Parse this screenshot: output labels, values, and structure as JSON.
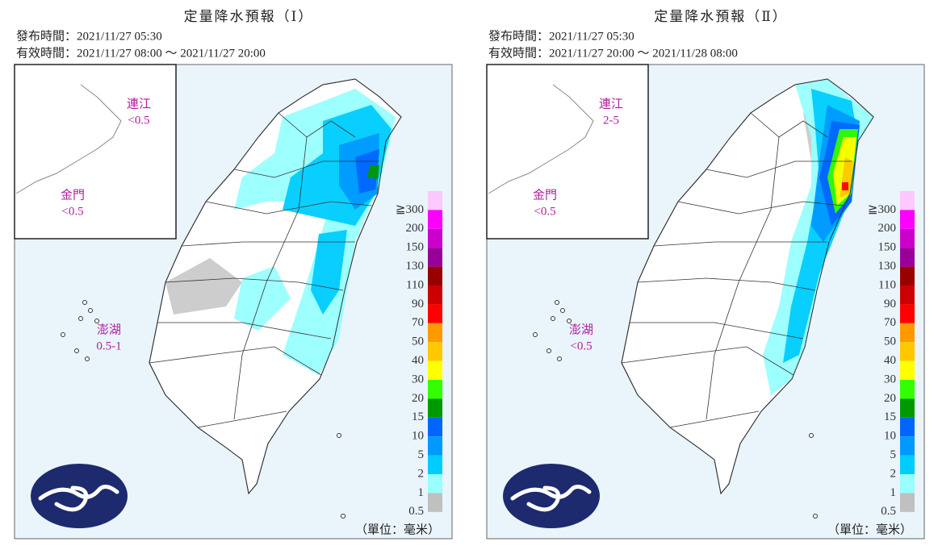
{
  "panels": [
    {
      "title": "定量降水預報（Ⅰ）",
      "issued": "發布時間：2021/11/27 05:30",
      "valid": "有效時間：2021/11/27 08:00 ～ 2021/11/27 20:00",
      "regions": [
        {
          "name": "連江",
          "value": "<0.5"
        },
        {
          "name": "金門",
          "value": "<0.5"
        },
        {
          "name": "澎湖",
          "value": "0.5-1"
        }
      ],
      "unit": "（單位：毫米）"
    },
    {
      "title": "定量降水預報（Ⅱ）",
      "issued": "發布時間：2021/11/27 05:30",
      "valid": "有效時間：2021/11/27 20:00 ～ 2021/11/28 08:00",
      "regions": [
        {
          "name": "連江",
          "value": "2-5"
        },
        {
          "name": "金門",
          "value": "<0.5"
        },
        {
          "name": "澎湖",
          "value": "<0.5"
        }
      ],
      "unit": "（單位：毫米）"
    }
  ],
  "legend": [
    {
      "label": "≧300",
      "color": "#fdc8fd"
    },
    {
      "label": "200",
      "color": "#fd00fd"
    },
    {
      "label": "150",
      "color": "#cc00cc"
    },
    {
      "label": "130",
      "color": "#990099"
    },
    {
      "label": "110",
      "color": "#990000"
    },
    {
      "label": "90",
      "color": "#cc0000"
    },
    {
      "label": "70",
      "color": "#ff0000"
    },
    {
      "label": "50",
      "color": "#ff9900"
    },
    {
      "label": "40",
      "color": "#ffc800"
    },
    {
      "label": "30",
      "color": "#ffff00"
    },
    {
      "label": "20",
      "color": "#33ff00"
    },
    {
      "label": "15",
      "color": "#009900"
    },
    {
      "label": "10",
      "color": "#0066ff"
    },
    {
      "label": "5",
      "color": "#0099ff"
    },
    {
      "label": "2",
      "color": "#00ccff"
    },
    {
      "label": "1",
      "color": "#99ffff"
    },
    {
      "label": "0.5",
      "color": "#c0c0c0"
    }
  ]
}
